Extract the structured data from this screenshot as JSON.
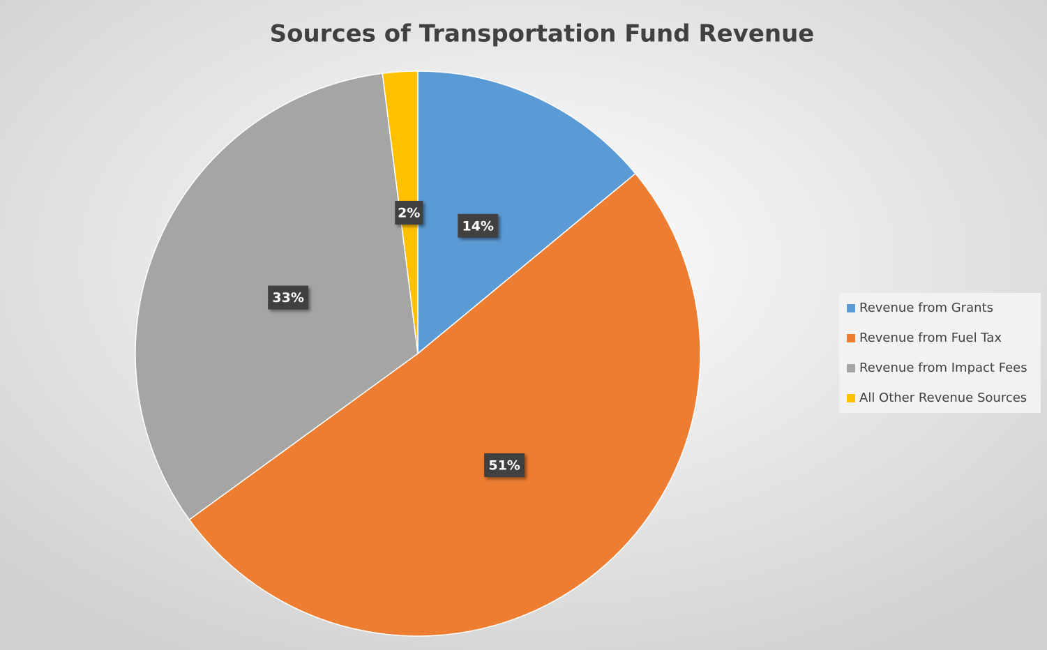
{
  "chart_data": {
    "type": "pie",
    "title": "Sources of Transportation Fund Revenue",
    "categories": [
      "Revenue from Grants",
      "Revenue from Fuel Tax",
      "Revenue from Impact Fees",
      "All Other Revenue Sources"
    ],
    "values": [
      14,
      51,
      33,
      2
    ],
    "value_labels": [
      "14%",
      "51%",
      "33%",
      "2%"
    ],
    "colors": [
      "#5b9bd5",
      "#ed7d31",
      "#a5a5a5",
      "#ffc000"
    ],
    "legend": "right"
  }
}
